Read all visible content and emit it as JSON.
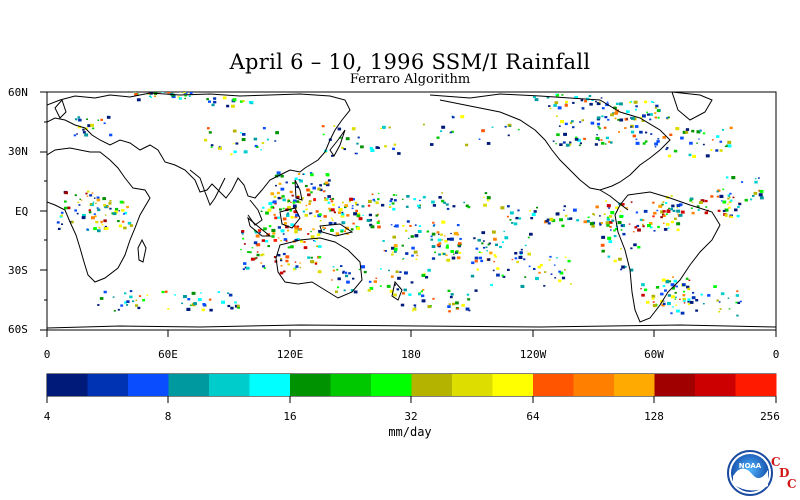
{
  "title": "April 6 – 10, 1996 SSM/I Rainfall",
  "subtitle": "Ferraro Algorithm",
  "lat_labels": [
    "60N",
    "30N",
    "EQ",
    "30S",
    "60S"
  ],
  "lon_labels": [
    "0",
    "60E",
    "120E",
    "180",
    "120W",
    "60W",
    "0"
  ],
  "colorbar": {
    "colors": [
      "#001a7a",
      "#0033b3",
      "#0a4dff",
      "#00999f",
      "#00cccc",
      "#00ffff",
      "#009200",
      "#00c800",
      "#00ff00",
      "#b3b300",
      "#dddd00",
      "#ffff00",
      "#ff5500",
      "#ff7f00",
      "#ffaa00",
      "#a00000",
      "#cc0000",
      "#ff1a00"
    ],
    "labels": [
      "4",
      "8",
      "16",
      "32",
      "64",
      "128",
      "256"
    ],
    "units": "mm/day"
  },
  "logo": {
    "text": "NOAA"
  },
  "cdc": {
    "c1": "C",
    "d": "D",
    "c2": "C"
  }
}
